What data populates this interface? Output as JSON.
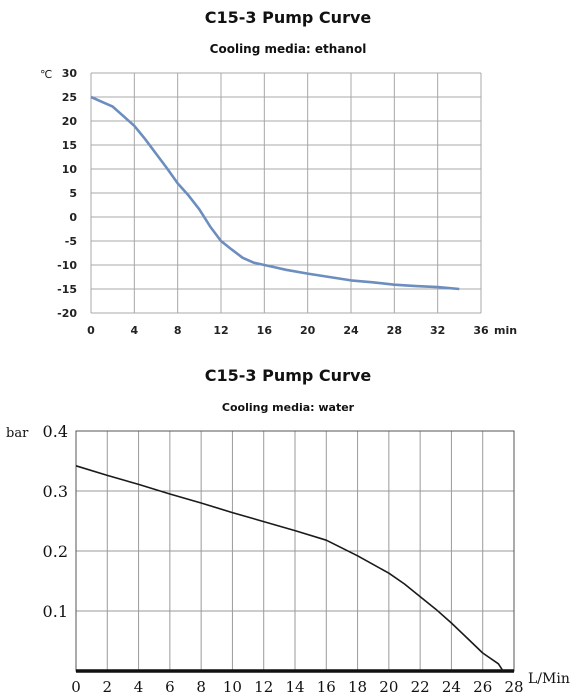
{
  "chart_data": [
    {
      "type": "line",
      "title": "C15-3 Pump Curve",
      "subtitle": "Cooling media: ethanol",
      "ylabel": "℃",
      "xlabel": "min",
      "xlim": [
        0,
        36
      ],
      "ylim": [
        -20,
        30
      ],
      "x_ticks": [
        "0",
        "4",
        "8",
        "12",
        "16",
        "20",
        "24",
        "28",
        "32",
        "36"
      ],
      "y_ticks": [
        "30",
        "25",
        "20",
        "15",
        "10",
        "5",
        "0",
        "-5",
        "-10",
        "-15",
        "-20"
      ],
      "grid": true,
      "color": "#6c8ebf",
      "series": [
        {
          "x": [
            0,
            1,
            2,
            3,
            4,
            5,
            6,
            7,
            8,
            9,
            10,
            11,
            12,
            13,
            14,
            15,
            16,
            17,
            18,
            20,
            22,
            24,
            26,
            28,
            30,
            31,
            32,
            34
          ],
          "y": [
            25,
            24,
            23,
            21,
            19,
            16.2,
            13.2,
            10.2,
            7,
            4.5,
            1.6,
            -2,
            -5,
            -6.8,
            -8.5,
            -9.5,
            -10,
            -10.5,
            -11,
            -11.8,
            -12.5,
            -13.2,
            -13.6,
            -14.1,
            -14.4,
            -14.5,
            -14.6,
            -15
          ]
        }
      ]
    },
    {
      "type": "line",
      "title": "C15-3 Pump Curve",
      "subtitle": "Cooling media: water",
      "ylabel": "bar",
      "xlabel": "L/Min",
      "xlim": [
        0,
        28
      ],
      "ylim": [
        0,
        0.4
      ],
      "x_ticks": [
        "0",
        "2",
        "4",
        "6",
        "8",
        "10",
        "12",
        "14",
        "16",
        "18",
        "20",
        "22",
        "24",
        "26",
        "28"
      ],
      "y_ticks": [
        "0.4",
        "0.3",
        "0.2",
        "0.1"
      ],
      "grid": true,
      "color": "#1a1a1a",
      "series": [
        {
          "x": [
            0,
            2,
            4,
            6,
            8,
            10,
            12,
            14,
            16,
            18,
            20,
            21,
            22,
            23,
            24,
            25,
            26,
            27,
            27.3
          ],
          "y": [
            0.342,
            0.326,
            0.311,
            0.295,
            0.28,
            0.264,
            0.249,
            0.234,
            0.218,
            0.192,
            0.163,
            0.145,
            0.124,
            0.103,
            0.08,
            0.055,
            0.03,
            0.012,
            0.0
          ]
        }
      ]
    }
  ]
}
